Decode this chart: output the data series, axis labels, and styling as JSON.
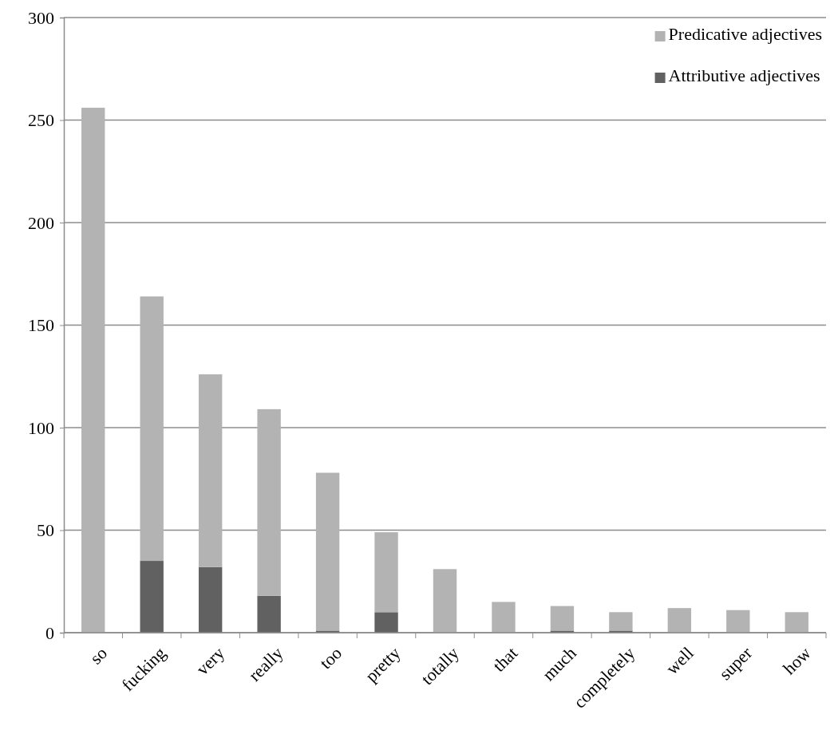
{
  "chart_data": {
    "type": "bar",
    "stacked": true,
    "categories": [
      "so",
      "fucking",
      "very",
      "really",
      "too",
      "pretty",
      "totally",
      "that",
      "much",
      "completely",
      "well",
      "super",
      "how"
    ],
    "series": [
      {
        "name": "Attributive adjectives",
        "color": "#616161",
        "values": [
          0,
          35,
          32,
          18,
          1,
          10,
          0,
          0,
          1,
          1,
          0,
          0,
          0
        ]
      },
      {
        "name": "Predicative adjectives",
        "color": "#b3b3b3",
        "values": [
          256,
          129,
          94,
          91,
          77,
          39,
          31,
          15,
          12,
          9,
          12,
          11,
          10
        ]
      }
    ],
    "ylim": [
      0,
      300
    ],
    "yticks": [
      0,
      50,
      100,
      150,
      200,
      250,
      300
    ],
    "grid": "y",
    "legend": "top right"
  }
}
